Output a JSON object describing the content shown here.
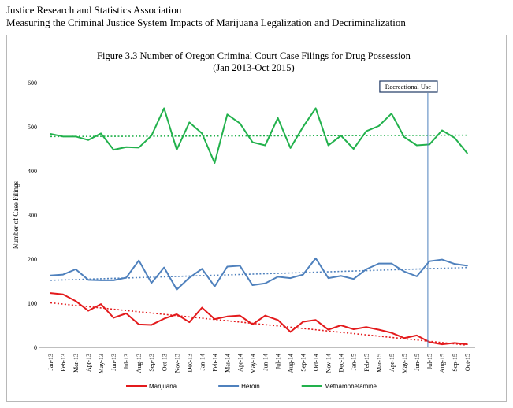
{
  "header": {
    "line1": "Justice Research and Statistics Association",
    "line2": "Measuring the Criminal Justice System Impacts of Marijuana Legalization and Decriminalization"
  },
  "chart_data": {
    "type": "line",
    "title": "Figure 3.3 Number of Oregon Criminal Court Case Filings for Drug Possession",
    "subtitle": "(Jan 2013-Oct 2015)",
    "xlabel": "",
    "ylabel": "Number of Case Filings",
    "ylim": [
      0,
      600
    ],
    "yticks": [
      "0",
      "100",
      "200",
      "300",
      "400",
      "500",
      "600"
    ],
    "grid": false,
    "legend_position": "bottom",
    "categories": [
      "Jan-13",
      "Feb-13",
      "Mar-13",
      "Apr-13",
      "May-13",
      "Jun-13",
      "Jul-13",
      "Aug-13",
      "Sep-13",
      "Oct-13",
      "Nov-13",
      "Dec-13",
      "Jan-14",
      "Feb-14",
      "Mar-14",
      "Apr-14",
      "May-14",
      "Jun-14",
      "Jul-14",
      "Aug-14",
      "Sep-14",
      "Oct-14",
      "Nov-14",
      "Dec-14",
      "Jan-15",
      "Feb-15",
      "Mar-15",
      "Apr-15",
      "May-15",
      "Jun-15",
      "Jul-15",
      "Aug-15",
      "Sep-15",
      "Oct-15"
    ],
    "series": [
      {
        "name": "Marijuana",
        "color": "#e31a1c",
        "values": [
          123,
          120,
          105,
          83,
          98,
          67,
          77,
          52,
          51,
          65,
          75,
          57,
          90,
          64,
          70,
          72,
          52,
          72,
          62,
          35,
          58,
          62,
          40,
          50,
          41,
          46,
          40,
          33,
          21,
          27,
          12,
          7,
          10,
          7
        ],
        "trend": [
          101,
          5
        ]
      },
      {
        "name": "Heroin",
        "color": "#4f81bd",
        "values": [
          163,
          165,
          177,
          153,
          152,
          152,
          158,
          197,
          146,
          181,
          131,
          158,
          178,
          138,
          183,
          185,
          141,
          145,
          160,
          157,
          165,
          202,
          157,
          162,
          155,
          177,
          190,
          190,
          172,
          161,
          195,
          199,
          189,
          185
        ],
        "trend": [
          152,
          181
        ]
      },
      {
        "name": "Methamphetamine",
        "color": "#22b14c",
        "values": [
          484,
          478,
          478,
          470,
          485,
          448,
          454,
          453,
          480,
          542,
          448,
          510,
          485,
          418,
          528,
          508,
          465,
          458,
          520,
          452,
          500,
          542,
          458,
          480,
          450,
          490,
          502,
          530,
          477,
          458,
          460,
          492,
          475,
          440
        ],
        "trend": [
          478,
          481
        ]
      }
    ],
    "annotations": [
      {
        "text": "Recreational Use",
        "at": "Jul-15"
      }
    ]
  }
}
